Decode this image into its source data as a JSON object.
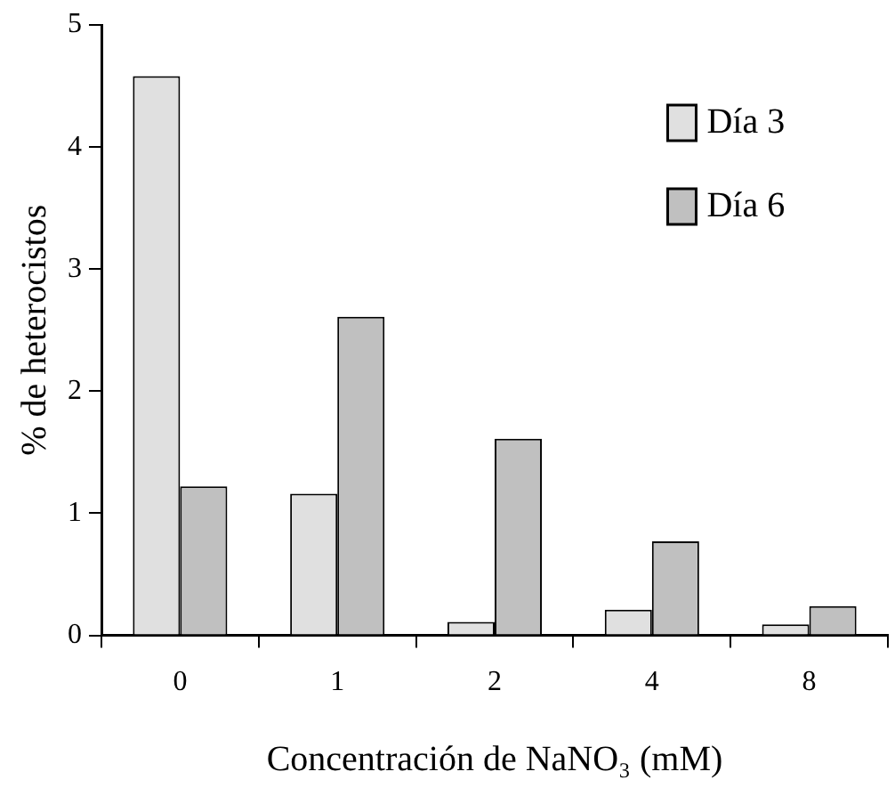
{
  "chart_data": {
    "type": "bar",
    "xlabel": "Concentración de NaNO₃ (mM)",
    "ylabel": "% de heterocistos",
    "categories": [
      "0",
      "1",
      "2",
      "4",
      "8"
    ],
    "series": [
      {
        "name": "Día 3",
        "color": "#e0e0e0",
        "values": [
          4.58,
          1.16,
          0.11,
          0.21,
          0.09
        ]
      },
      {
        "name": "Día 6",
        "color": "#c0c0c0",
        "values": [
          1.22,
          2.61,
          1.61,
          0.77,
          0.24
        ]
      }
    ],
    "ylim": [
      0,
      5
    ],
    "yticks": [
      0,
      1,
      2,
      3,
      4,
      5
    ],
    "grid": false,
    "legend": "top right"
  }
}
